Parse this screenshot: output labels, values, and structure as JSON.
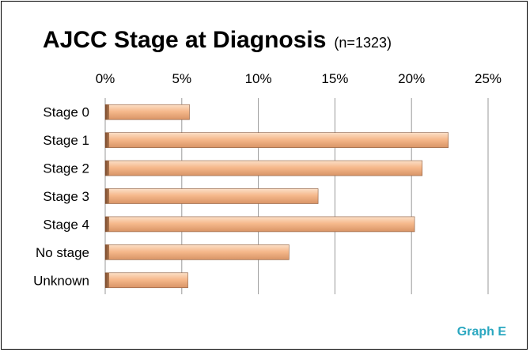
{
  "chart_data": {
    "type": "bar",
    "orientation": "horizontal",
    "title": "AJCC Stage at Diagnosis",
    "subtitle": "(n=1323)",
    "categories": [
      "Stage 0",
      "Stage 1",
      "Stage 2",
      "Stage 3",
      "Stage 4",
      "No stage",
      "Unknown"
    ],
    "values": [
      5.5,
      22.4,
      20.7,
      13.9,
      20.2,
      12.0,
      5.4
    ],
    "x_ticks": [
      "0%",
      "5%",
      "10%",
      "15%",
      "20%",
      "25%"
    ],
    "xlim": [
      0,
      25
    ],
    "x_axis_position": "top",
    "grid": true,
    "legend": "none",
    "bar_color": "#f6b98c",
    "bar_edge_color": "#8a5a3c"
  },
  "footer": "Graph E"
}
